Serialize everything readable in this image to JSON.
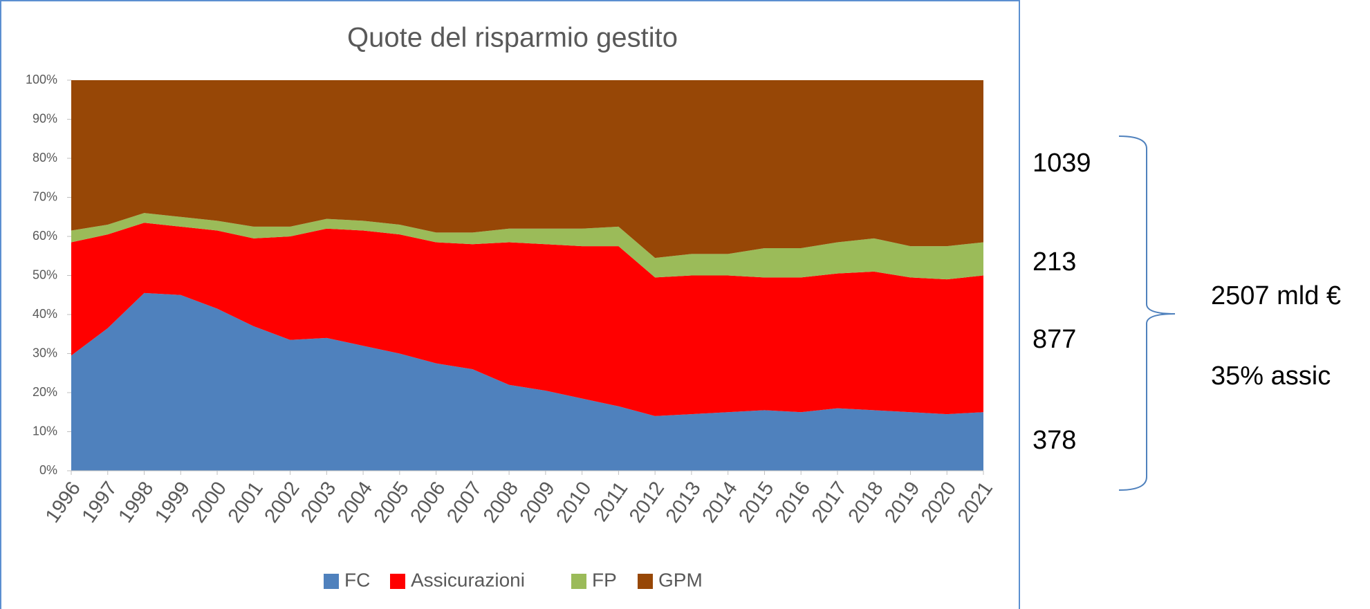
{
  "chart_data": {
    "type": "stacked_area_percent",
    "title": "Quote del risparmio gestito",
    "categories": [
      "1996",
      "1997",
      "1998",
      "1999",
      "2000",
      "2001",
      "2002",
      "2003",
      "2004",
      "2005",
      "2006",
      "2007",
      "2008",
      "2009",
      "2010",
      "2011",
      "2012",
      "2013",
      "2014",
      "2015",
      "2016",
      "2017",
      "2018",
      "2019",
      "2020",
      "2021"
    ],
    "series": [
      {
        "name": "FC",
        "color": "#4f81bd",
        "values": [
          29.5,
          36.5,
          45.5,
          45,
          41.5,
          37,
          33.5,
          34,
          32,
          30,
          27.5,
          26,
          22,
          20.5,
          18.5,
          16.5,
          14,
          14.5,
          15,
          15.5,
          15,
          16,
          15.5,
          15,
          14.5,
          15
        ]
      },
      {
        "name": "Assicurazioni",
        "color": "#ff0000",
        "values": [
          29,
          24,
          18,
          17.5,
          20,
          22.5,
          26.5,
          28,
          29.5,
          30.5,
          31,
          32,
          36.5,
          37.5,
          39,
          41,
          35.5,
          35.5,
          35,
          34,
          34.5,
          34.5,
          35.5,
          34.5,
          34.5,
          35
        ]
      },
      {
        "name": "FP",
        "color": "#9bbb59",
        "values": [
          3,
          2.5,
          2.5,
          2.5,
          2.5,
          3,
          2.5,
          2.5,
          2.5,
          2.5,
          2.5,
          3,
          3.5,
          4,
          4.5,
          5,
          5,
          5.5,
          5.5,
          7.5,
          7.5,
          8,
          8.5,
          8,
          8.5,
          8.5
        ]
      },
      {
        "name": "GPM",
        "color": "#974706",
        "values": [
          38.5,
          37,
          34,
          35,
          36,
          37.5,
          37.5,
          35.5,
          36,
          37,
          39,
          39,
          38,
          38,
          38,
          37.5,
          45.5,
          44.5,
          44.5,
          43,
          43,
          41.5,
          40.5,
          42.5,
          42.5,
          41.5
        ]
      }
    ],
    "ylim": [
      0,
      100
    ],
    "yticks": [
      {
        "value": 0,
        "label": "0%"
      },
      {
        "value": 10,
        "label": "10%"
      },
      {
        "value": 20,
        "label": "20%"
      },
      {
        "value": 30,
        "label": "30%"
      },
      {
        "value": 40,
        "label": "40%"
      },
      {
        "value": 50,
        "label": "50%"
      },
      {
        "value": 60,
        "label": "60%"
      },
      {
        "value": 70,
        "label": "70%"
      },
      {
        "value": 80,
        "label": "80%"
      },
      {
        "value": 90,
        "label": "90%"
      },
      {
        "value": 100,
        "label": "100%"
      }
    ],
    "legend": "bottom",
    "annotations": [
      "1039",
      "213",
      "877",
      "378",
      "2507 mld €",
      "35% assic"
    ]
  }
}
